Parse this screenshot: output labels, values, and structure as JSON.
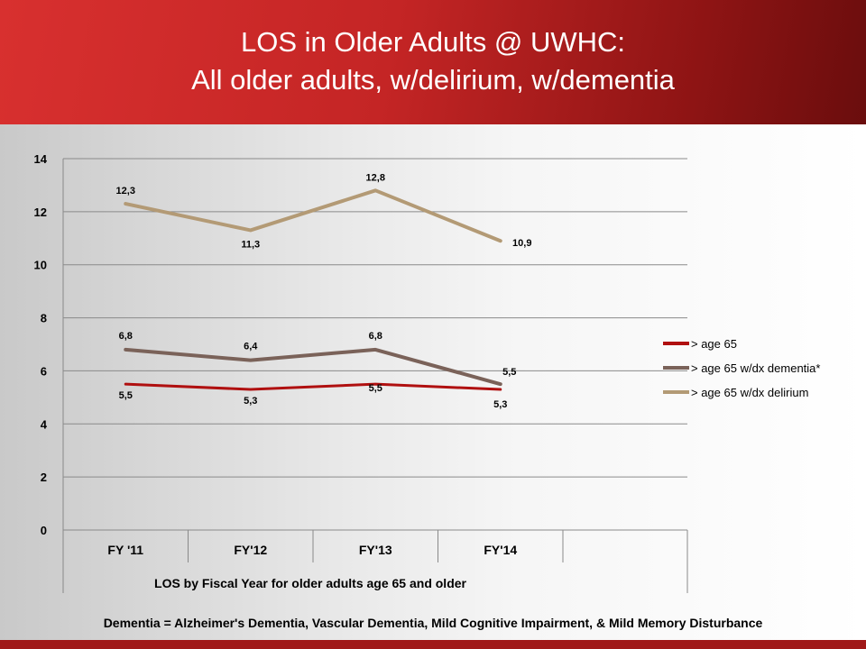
{
  "slide": {
    "title_line1": "LOS in Older Adults @ UWHC:",
    "title_line2": "All older adults, w/delirium,  w/dementia",
    "footnote": "Dementia = Alzheimer's Dementia, Vascular Dementia, Mild Cognitive Impairment, & Mild Memory Disturbance",
    "colors": {
      "header": "#c42525",
      "bottom_bar": "#a01818"
    }
  },
  "chart_data": {
    "type": "line",
    "title": "",
    "xlabel": "LOS by Fiscal Year for older adults age 65 and older",
    "ylabel": "",
    "categories": [
      "FY '11",
      "FY'12",
      "FY'13",
      "FY'14"
    ],
    "ylim": [
      0,
      14
    ],
    "yticks": [
      0,
      2,
      4,
      6,
      8,
      10,
      12,
      14
    ],
    "grid": true,
    "legend_position": "right",
    "series": [
      {
        "name": "> age 65",
        "color": "#b01010",
        "values": [
          5.5,
          5.3,
          5.5,
          5.3
        ],
        "labels": [
          "5,5",
          "5,3",
          "5,5",
          "5,3"
        ]
      },
      {
        "name": "> age 65 w/dx dementia*",
        "color": "#7a6259",
        "values": [
          6.8,
          6.4,
          6.8,
          5.5
        ],
        "labels": [
          "6,8",
          "6,4",
          "6,8",
          "5,5"
        ]
      },
      {
        "name": "> age 65  w/dx delirium",
        "color": "#b39a75",
        "values": [
          12.3,
          11.3,
          12.8,
          10.9
        ],
        "labels": [
          "12,3",
          "11,3",
          "12,8",
          "10,9"
        ]
      }
    ]
  }
}
